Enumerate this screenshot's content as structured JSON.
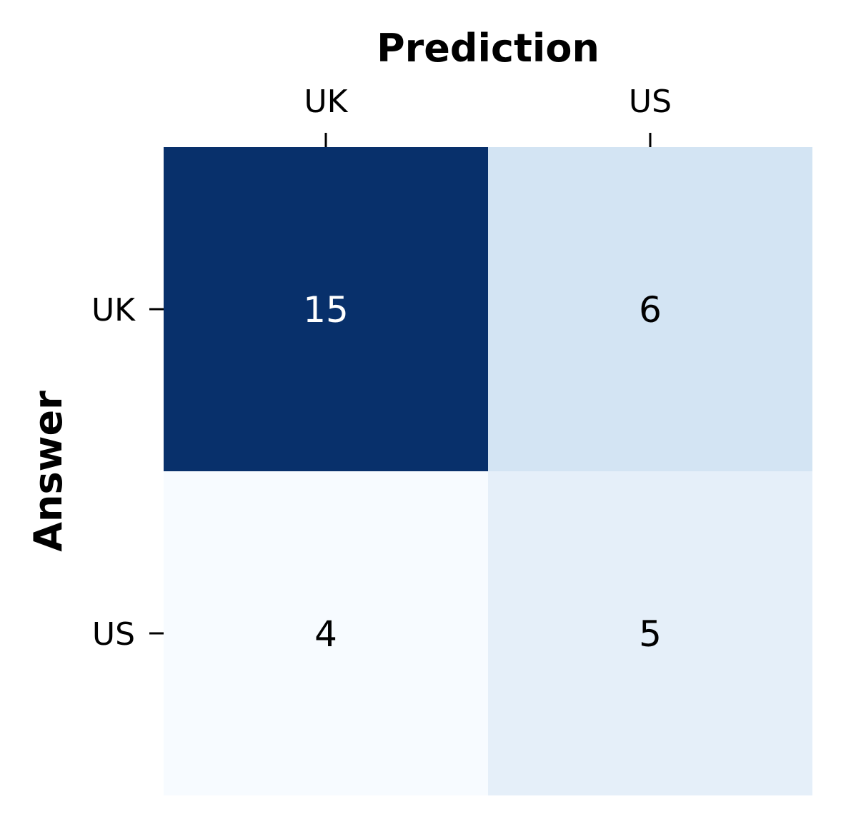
{
  "chart_data": {
    "type": "heatmap",
    "title": "",
    "xlabel": "Prediction",
    "ylabel": "Answer",
    "x_categories": [
      "UK",
      "US"
    ],
    "y_categories": [
      "UK",
      "US"
    ],
    "values": [
      [
        15,
        6
      ],
      [
        4,
        5
      ]
    ],
    "x_axis_position": "top",
    "colormap": "Blues",
    "color_min": "#f7fbff",
    "color_max": "#08306b",
    "text_color_dark_cells": "#ffffff",
    "text_color_light_cells": "#000000",
    "colorbar": false,
    "grid": false
  }
}
